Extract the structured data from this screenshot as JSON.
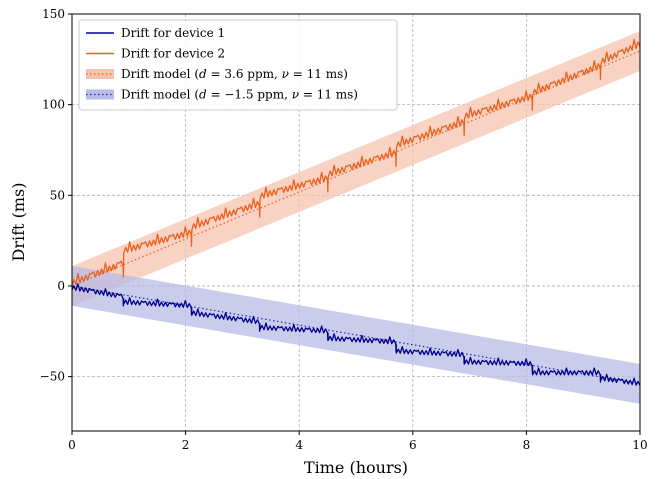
{
  "chart_data": {
    "type": "line",
    "xlabel": "Time (hours)",
    "ylabel": "Drift (ms)",
    "xlim": [
      0,
      10
    ],
    "ylim": [
      -80,
      150
    ],
    "xticks": [
      0,
      2,
      4,
      6,
      8,
      10
    ],
    "yticks": [
      -50,
      0,
      50,
      100,
      150
    ],
    "ytick_labels": [
      "−50",
      "0",
      "50",
      "100",
      "150"
    ],
    "grid": true,
    "legend_position": "top-left",
    "series": [
      {
        "name": "Drift for device 1",
        "style": "solid",
        "color": "#00008b",
        "x": [
          0,
          0.9,
          0.91,
          2.1,
          2.11,
          3.3,
          3.31,
          4.5,
          4.51,
          5.7,
          5.71,
          6.9,
          6.91,
          8.1,
          8.11,
          9.3,
          9.31,
          10
        ],
        "y": [
          -2,
          -7,
          -10,
          -12,
          -16,
          -21,
          -24,
          -26,
          -30,
          -32,
          -37,
          -39,
          -43,
          -44,
          -49,
          -49,
          -52,
          -55
        ]
      },
      {
        "name": "Drift for device 2",
        "style": "solid",
        "color": "#e8601c",
        "x": [
          0,
          0.9,
          0.91,
          2.1,
          2.11,
          3.3,
          3.31,
          4.5,
          4.51,
          5.7,
          5.71,
          6.9,
          6.91,
          8.1,
          8.11,
          9.3,
          9.31,
          10
        ],
        "y": [
          0,
          11,
          18,
          28,
          31,
          44,
          48,
          58,
          60,
          72,
          76,
          89,
          92,
          103,
          105,
          120,
          122,
          132
        ]
      },
      {
        "name": "Drift model (d = 3.6 ppm, ν = 11 ms)",
        "style": "dotted",
        "color": "#e8601c",
        "band_color": "#f6c3ad",
        "slope_ms_per_hour": 12.96,
        "band_halfwidth_ms": 11
      },
      {
        "name": "Drift model (d = −1.5 ppm, ν = 11 ms)",
        "style": "dotted",
        "color": "#1f2fb4",
        "band_color": "#b8bbe6",
        "slope_ms_per_hour": -5.4,
        "band_halfwidth_ms": 11
      }
    ],
    "legend": [
      {
        "label_parts": [
          [
            "Drift for device 1",
            "normal"
          ]
        ]
      },
      {
        "label_parts": [
          [
            "Drift for device 2",
            "normal"
          ]
        ]
      },
      {
        "label_parts": [
          [
            "Drift model (",
            "normal"
          ],
          [
            "d",
            "italic"
          ],
          [
            " = 3.6 ppm, ",
            "normal"
          ],
          [
            "ν",
            "italic"
          ],
          [
            " = 11 ms)",
            "normal"
          ]
        ]
      },
      {
        "label_parts": [
          [
            "Drift model (",
            "normal"
          ],
          [
            "d",
            "italic"
          ],
          [
            " = −1.5 ppm, ",
            "normal"
          ],
          [
            "ν",
            "italic"
          ],
          [
            " = 11 ms)",
            "normal"
          ]
        ]
      }
    ]
  }
}
